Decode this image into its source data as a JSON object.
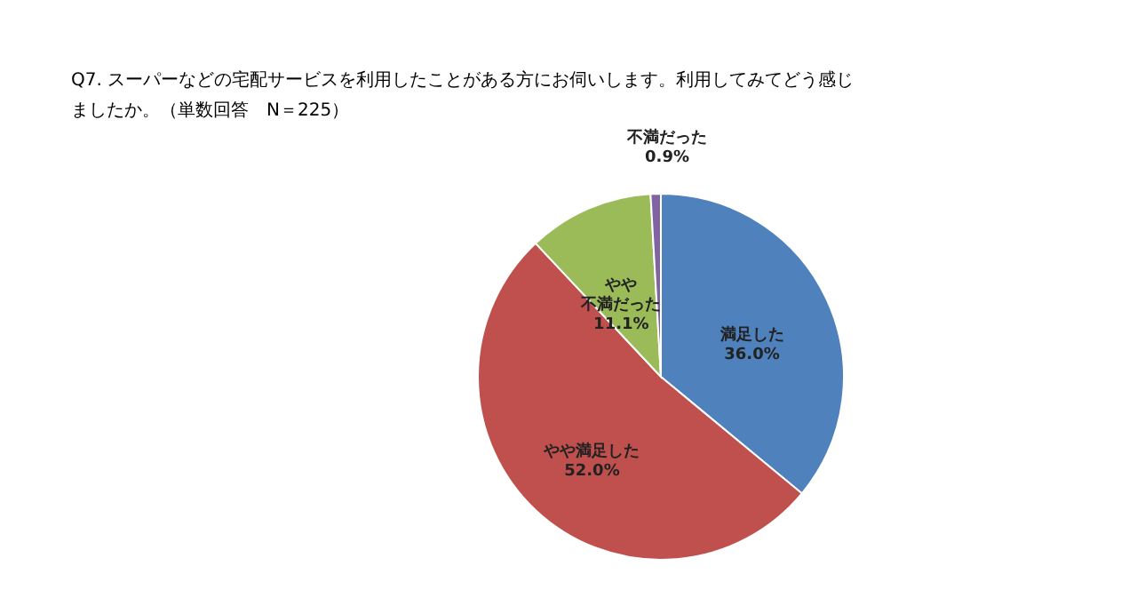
{
  "chart_data": {
    "type": "pie",
    "title": "Q7. スーパーなどの宅配サービスを利用したことがある方にお伺いします。利用してみてどう感じましたか。（単数回答　N＝225）",
    "categories": [
      "満足した",
      "やや満足した",
      "やや不満だった",
      "不満だった"
    ],
    "values": [
      36.0,
      52.0,
      11.1,
      0.9
    ],
    "value_labels": [
      "36.0%",
      "52.0%",
      "11.1%",
      "0.9%"
    ],
    "colors": [
      "#4f81bd",
      "#c0504d",
      "#9bbb59",
      "#8064a2"
    ]
  }
}
